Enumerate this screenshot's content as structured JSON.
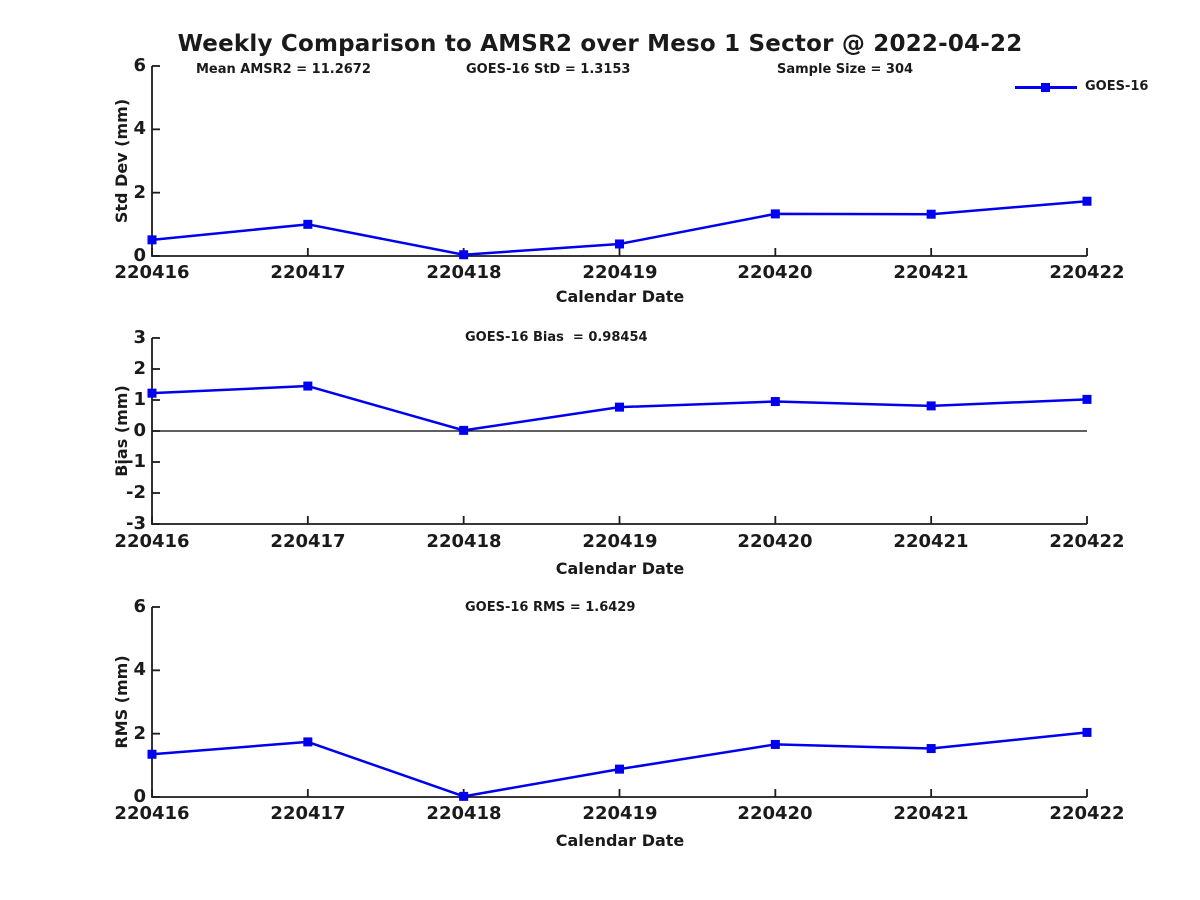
{
  "title": "Weekly Comparison to AMSR2 over Meso 1 Sector @ 2022-04-22",
  "legend": {
    "label": "GOES-16",
    "marker": "filled-square",
    "position": "top-right"
  },
  "colors": {
    "line": "#0000ee",
    "axis": "#1c1c1c",
    "text": "#1a1a1a",
    "zero_line": "#000000",
    "background": "#ffffff"
  },
  "chart_data": [
    {
      "type": "line",
      "subplot": "std-dev",
      "ylabel": "Std Dev (mm)",
      "xlabel": "Calendar Date",
      "categories": [
        "220416",
        "220417",
        "220418",
        "220419",
        "220420",
        "220421",
        "220422"
      ],
      "series": [
        {
          "name": "GOES-16",
          "values": [
            0.51,
            1.0,
            0.04,
            0.38,
            1.33,
            1.32,
            1.73
          ]
        }
      ],
      "ylim": [
        0,
        6
      ],
      "yticks": [
        0,
        2,
        4,
        6
      ],
      "ytick_labels": [
        "0",
        "2",
        "4",
        "6"
      ],
      "grid": false,
      "zero_line": false,
      "annotations": [
        "Mean AMSR2 = 11.2672",
        "GOES-16 StD = 1.3153",
        "Sample Size = 304"
      ]
    },
    {
      "type": "line",
      "subplot": "bias",
      "title": "GOES-16 Bias  = 0.98454",
      "ylabel": "Bias (mm)",
      "xlabel": "Calendar Date",
      "categories": [
        "220416",
        "220417",
        "220418",
        "220419",
        "220420",
        "220421",
        "220422"
      ],
      "series": [
        {
          "name": "GOES-16",
          "values": [
            1.22,
            1.45,
            0.02,
            0.77,
            0.95,
            0.81,
            1.02
          ]
        }
      ],
      "ylim": [
        -3,
        3
      ],
      "yticks": [
        -3,
        -2,
        -1,
        0,
        1,
        2,
        3
      ],
      "ytick_labels": [
        "-3",
        "-2",
        "-1",
        "0",
        "1",
        "2",
        "3"
      ],
      "grid": false,
      "zero_line": true
    },
    {
      "type": "line",
      "subplot": "rms",
      "title": "GOES-16 RMS = 1.6429",
      "ylabel": "RMS (mm)",
      "xlabel": "Calendar Date",
      "categories": [
        "220416",
        "220417",
        "220418",
        "220419",
        "220420",
        "220421",
        "220422"
      ],
      "series": [
        {
          "name": "GOES-16",
          "values": [
            1.35,
            1.74,
            0.02,
            0.88,
            1.66,
            1.53,
            2.04
          ]
        }
      ],
      "ylim": [
        0,
        6
      ],
      "yticks": [
        0,
        2,
        4,
        6
      ],
      "ytick_labels": [
        "0",
        "2",
        "4",
        "6"
      ],
      "grid": false,
      "zero_line": false
    }
  ]
}
